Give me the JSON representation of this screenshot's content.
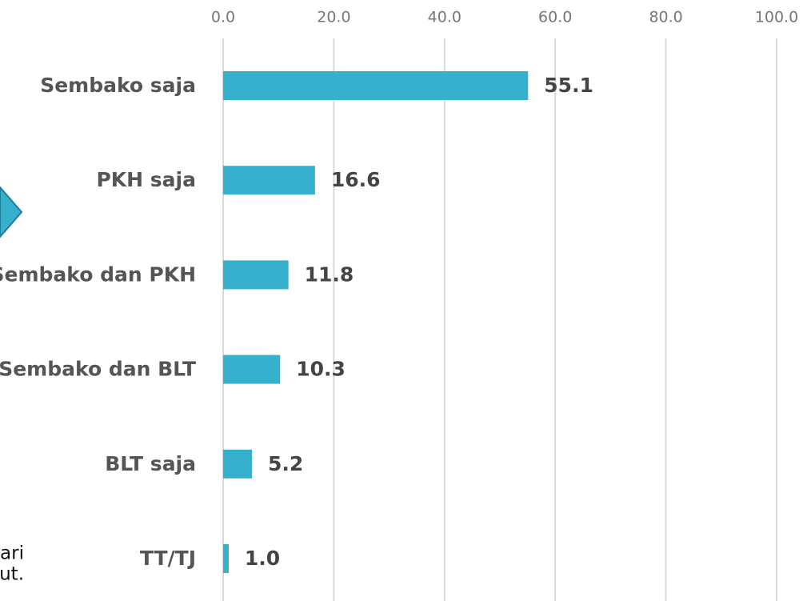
{
  "chart_data": {
    "type": "barh",
    "categories": [
      "Sembako saja",
      "PKH saja",
      "Sembako dan PKH",
      "Sembako dan BLT",
      "BLT saja",
      "TT/TJ"
    ],
    "values": [
      55.1,
      16.6,
      11.8,
      10.3,
      5.2,
      1.0
    ],
    "value_labels": [
      "55.1",
      "16.6",
      "11.8",
      "10.3",
      "5.2",
      "1.0"
    ],
    "color": "#36b0cc",
    "xlim": [
      0,
      100
    ],
    "xticks": [
      {
        "value": 0,
        "label": "0.0"
      },
      {
        "value": 20,
        "label": "20.0"
      },
      {
        "value": 40,
        "label": "40.0"
      },
      {
        "value": 60,
        "label": "60.0"
      },
      {
        "value": 80,
        "label": "80.0"
      },
      {
        "value": 100,
        "label": "100.0"
      }
    ],
    "grid": true,
    "annotations": [
      "ari",
      "ut."
    ]
  }
}
